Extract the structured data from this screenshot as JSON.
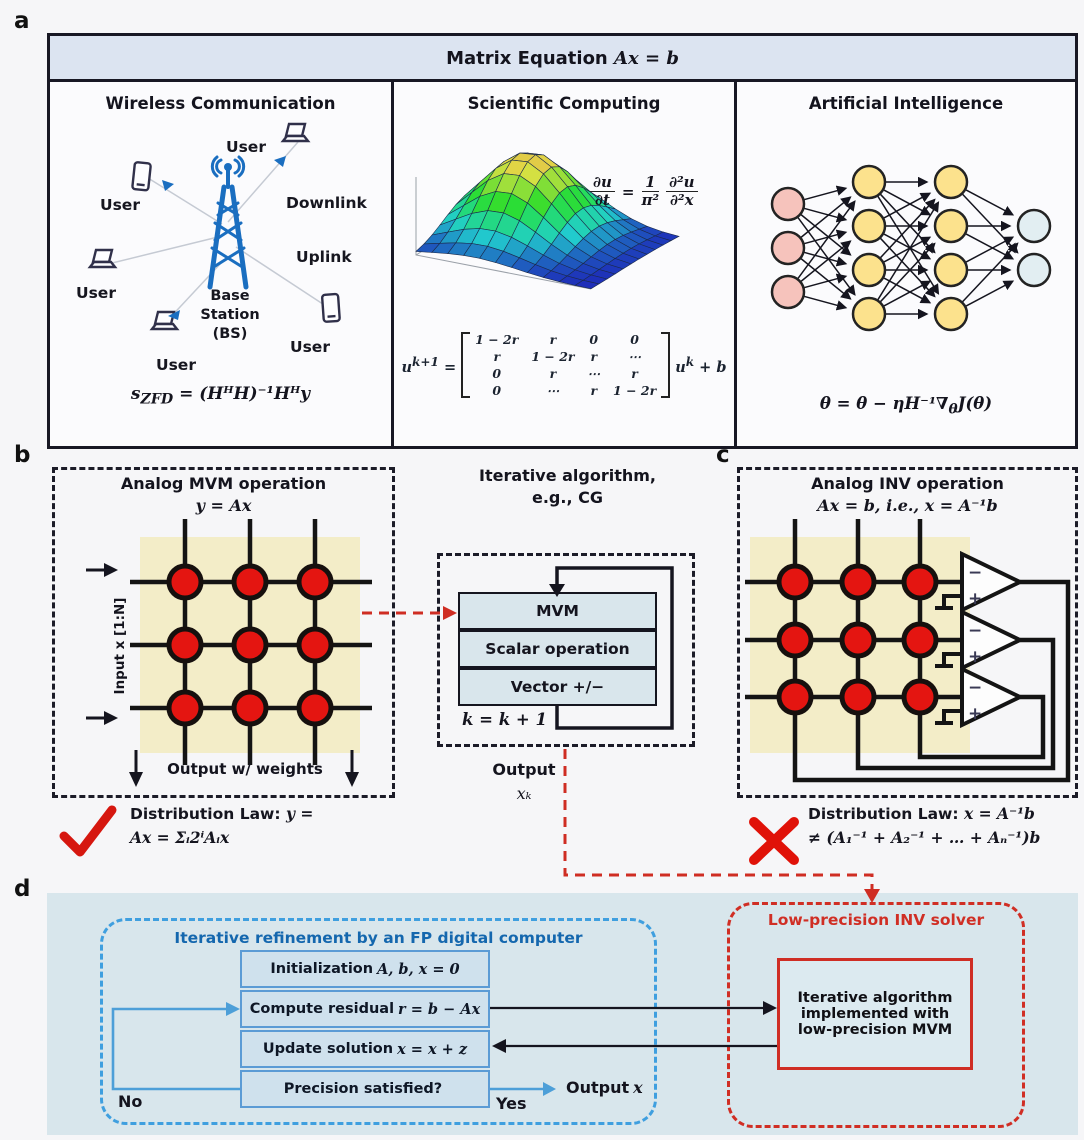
{
  "colors": {
    "panel_border": "#181824",
    "header_bg": "#dce4f1",
    "crossbar_bg": "#f3edc8",
    "device_red": "#e41511",
    "wire": "#141414",
    "accent_blue": "#1a6ec0",
    "d_bg": "#d8e6ec",
    "d_box_bg": "#cfe1ed",
    "d_box_border": "#5b9bd5",
    "d_title_blue": "#1467ae",
    "red": "#d02e24"
  },
  "panel_a": {
    "label": "a",
    "header": {
      "prefix": "Matrix Equation ",
      "math": "Ax = b"
    },
    "wireless": {
      "title": "Wireless Communication",
      "user_labels": [
        "User",
        "User",
        "User",
        "User",
        "User"
      ],
      "downlink": "Downlink",
      "uplink": "Uplink",
      "base_station": [
        "Base",
        "Station",
        "(BS)"
      ],
      "equation": {
        "s": "s",
        "sub": "ZFD",
        "rest": " = (HᴴH)⁻¹Hᴴy"
      }
    },
    "scientific": {
      "title": "Scientific Computing",
      "pde": {
        "num1": "∂u",
        "den1": "∂t",
        "equals": "=",
        "num2": "1",
        "den2": "π²",
        "num3": "∂²u",
        "den3": "∂²x"
      },
      "matrix": {
        "lead": "u",
        "lead_sup": "k+1",
        "equals": "=",
        "rows": [
          [
            "1 − 2r",
            "r",
            "0",
            "0"
          ],
          [
            "r",
            "1 − 2r",
            "r",
            "⋯"
          ],
          [
            "0",
            "r",
            "⋯",
            "r"
          ],
          [
            "0",
            "⋯",
            "r",
            "1 − 2r"
          ]
        ],
        "trail": "u",
        "trail_sup": "k",
        "plus": " + b"
      }
    },
    "ai": {
      "title": "Artificial Intelligence",
      "equation": {
        "p1": "θ = θ − ηH⁻¹∇",
        "sub": "θ",
        "p2": "J(θ)"
      },
      "network_layers": [
        3,
        4,
        4,
        2
      ],
      "layer_colors": [
        "#f6c3bc",
        "#fce28d",
        "#fce28d",
        "#e2eef2"
      ]
    }
  },
  "panel_b": {
    "label": "b",
    "title": "Analog MVM operation",
    "subtitle": "y = Ax",
    "input_label": "Input x [1:N]",
    "output_label": "Output w/ weights",
    "law": {
      "label": "Distribution Law: ",
      "line1_math": "y =",
      "line2_math": "Ax = Σᵢ2ⁱAᵢx"
    }
  },
  "middle": {
    "title_line1": "Iterative algorithm,",
    "title_line2": "e.g., CG",
    "steps": [
      "MVM",
      "Scalar operation",
      "Vector +/−"
    ],
    "counter": "k = k + 1",
    "output_line1": "Output",
    "output_line2": "xₖ"
  },
  "panel_c": {
    "label": "c",
    "title": "Analog INV operation",
    "subtitle": "Ax = b, i.e., x = A⁻¹b",
    "law": {
      "label": "Distribution Law: ",
      "line1_math": "x = A⁻¹b",
      "line2_math": "≠ (A₁⁻¹ + A₂⁻¹ + … + Aₙ⁻¹)b"
    }
  },
  "panel_d": {
    "label": "d",
    "left": {
      "title": "Iterative refinement by an FP digital computer",
      "steps": [
        {
          "prefix": "Initialization",
          "math": "A, b, x = 0"
        },
        {
          "prefix": "Compute residual",
          "math": "r = b − Ax"
        },
        {
          "prefix": "Update solution",
          "math": "x = x + z"
        },
        {
          "prefix": "Precision satisfied?",
          "math": ""
        }
      ],
      "no_label": "No",
      "yes_label": "Yes",
      "output": {
        "prefix": "Output",
        "math": "x"
      }
    },
    "right": {
      "title": "Low-precision INV solver",
      "box": "Iterative algorithm implemented with low-precision MVM"
    }
  },
  "graphics": {
    "opamp_minus": "−",
    "opamp_plus": "+"
  }
}
